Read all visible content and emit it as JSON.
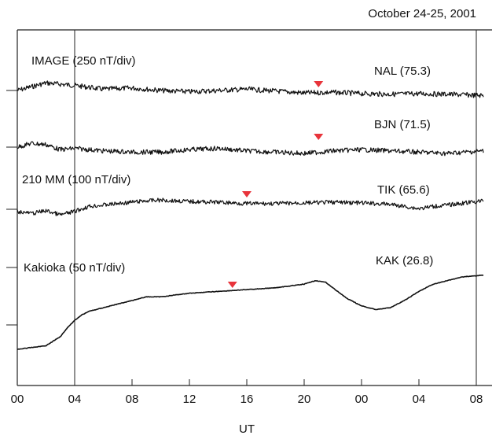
{
  "chart_data": {
    "type": "line",
    "title": "October 24-25, 2001",
    "xlabel": "UT",
    "ylabel": "",
    "x_tick_labels": [
      "00",
      "04",
      "08",
      "12",
      "16",
      "20",
      "00",
      "04",
      "08"
    ],
    "x_range_hours": [
      0,
      32.5
    ],
    "marker_lines_hours": [
      4,
      32
    ],
    "grid": false,
    "group_labels": [
      {
        "text": "IMAGE (250 nT/div)"
      },
      {
        "text": "210 MM (100 nT/div)"
      },
      {
        "text": "Kakioka (50 nT/div)"
      }
    ],
    "series": [
      {
        "name": "NAL (75.3)",
        "marker_hours": 21,
        "color": "#111111",
        "points": [
          [
            0,
            0.0
          ],
          [
            2,
            1.2
          ],
          [
            4,
            0.8
          ],
          [
            6,
            0.2
          ],
          [
            8,
            0.4
          ],
          [
            10,
            0.0
          ],
          [
            12,
            -0.2
          ],
          [
            14,
            0.0
          ],
          [
            16,
            0.2
          ],
          [
            18,
            -0.1
          ],
          [
            20,
            -0.4
          ],
          [
            22,
            -0.3
          ],
          [
            24,
            -0.5
          ],
          [
            26,
            -0.6
          ],
          [
            28,
            -0.5
          ],
          [
            30,
            -0.6
          ],
          [
            32.5,
            -0.8
          ]
        ]
      },
      {
        "name": "BJN (71.5)",
        "marker_hours": 21,
        "color": "#111111",
        "points": [
          [
            0,
            0.0
          ],
          [
            1,
            0.6
          ],
          [
            2,
            0.4
          ],
          [
            3,
            -0.4
          ],
          [
            4,
            -0.2
          ],
          [
            6,
            -0.6
          ],
          [
            8,
            -0.8
          ],
          [
            10,
            -0.8
          ],
          [
            12,
            -0.4
          ],
          [
            14,
            -0.2
          ],
          [
            16,
            -0.6
          ],
          [
            18,
            -0.8
          ],
          [
            20,
            -1.0
          ],
          [
            22,
            -0.6
          ],
          [
            24,
            -0.4
          ],
          [
            26,
            -0.6
          ],
          [
            28,
            -0.8
          ],
          [
            30,
            -1.0
          ],
          [
            32.5,
            -0.6
          ]
        ]
      },
      {
        "name": "TIK (65.6)",
        "marker_hours": 16,
        "color": "#111111",
        "points": [
          [
            0,
            -0.3
          ],
          [
            1,
            -0.6
          ],
          [
            2,
            -0.2
          ],
          [
            3,
            -0.8
          ],
          [
            4,
            -0.3
          ],
          [
            5,
            0.4
          ],
          [
            6,
            0.6
          ],
          [
            7,
            0.8
          ],
          [
            8,
            1.0
          ],
          [
            9,
            1.2
          ],
          [
            10,
            1.3
          ],
          [
            12,
            1.1
          ],
          [
            14,
            1.0
          ],
          [
            16,
            0.8
          ],
          [
            18,
            0.8
          ],
          [
            20,
            0.9
          ],
          [
            22,
            1.0
          ],
          [
            24,
            0.9
          ],
          [
            26,
            0.7
          ],
          [
            27,
            0.4
          ],
          [
            28,
            0.1
          ],
          [
            29,
            0.4
          ],
          [
            30,
            0.6
          ],
          [
            32.5,
            1.2
          ]
        ]
      },
      {
        "name": "KAK (26.8)",
        "marker_hours": 15,
        "color": "#111111",
        "points": [
          [
            0,
            0.0
          ],
          [
            1,
            0.1
          ],
          [
            2,
            0.2
          ],
          [
            3,
            0.7
          ],
          [
            3.5,
            1.2
          ],
          [
            4,
            1.6
          ],
          [
            4.5,
            1.9
          ],
          [
            5,
            2.1
          ],
          [
            6,
            2.3
          ],
          [
            7,
            2.5
          ],
          [
            8,
            2.7
          ],
          [
            9,
            2.9
          ],
          [
            10,
            2.9
          ],
          [
            11,
            3.0
          ],
          [
            12,
            3.1
          ],
          [
            14,
            3.2
          ],
          [
            16,
            3.3
          ],
          [
            18,
            3.4
          ],
          [
            19,
            3.5
          ],
          [
            20,
            3.6
          ],
          [
            20.8,
            3.8
          ],
          [
            21.5,
            3.7
          ],
          [
            22,
            3.4
          ],
          [
            23,
            2.8
          ],
          [
            24,
            2.4
          ],
          [
            25,
            2.2
          ],
          [
            26,
            2.3
          ],
          [
            27,
            2.7
          ],
          [
            28,
            3.2
          ],
          [
            29,
            3.6
          ],
          [
            30,
            3.8
          ],
          [
            31,
            4.0
          ],
          [
            32.5,
            4.1
          ]
        ]
      }
    ]
  },
  "colors": {
    "trace": "#111111",
    "marker": "#e8343b",
    "frame": "#222222"
  }
}
